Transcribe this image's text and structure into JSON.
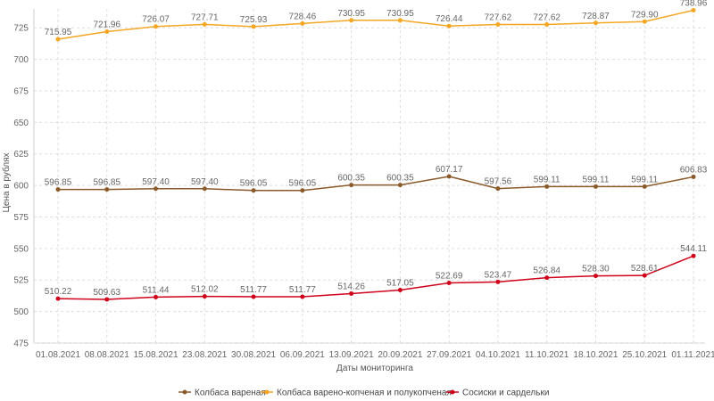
{
  "chart_data": {
    "type": "line",
    "xlabel": "Даты мониторинга",
    "ylabel": "Цена в рублях",
    "ylim": [
      475,
      740
    ],
    "yticks": [
      475,
      500,
      525,
      550,
      575,
      600,
      625,
      650,
      675,
      700,
      725
    ],
    "grid": true,
    "legend_position": "bottom",
    "categories": [
      "01.08.2021",
      "08.08.2021",
      "15.08.2021",
      "23.08.2021",
      "30.08.2021",
      "06.09.2021",
      "13.09.2021",
      "20.09.2021",
      "27.09.2021",
      "04.10.2021",
      "11.10.2021",
      "18.10.2021",
      "25.10.2021",
      "01.11.2021"
    ],
    "series": [
      {
        "name": "Колбаса вареная",
        "color": "#8B5A2B",
        "values": [
          596.85,
          596.85,
          597.4,
          597.4,
          596.05,
          596.05,
          600.35,
          600.35,
          607.17,
          597.56,
          599.11,
          599.11,
          599.11,
          606.83
        ],
        "labels": [
          "596.85",
          "596.85",
          "597.40",
          "597.40",
          "596.05",
          "596.05",
          "600.35",
          "600.35",
          "607.17",
          "597.56",
          "599.11",
          "599.11",
          "599.11",
          "606.83"
        ]
      },
      {
        "name": "Колбаса варено-копченая и полукопченая",
        "color": "#F5A623",
        "values": [
          715.95,
          721.96,
          726.07,
          727.71,
          725.93,
          728.46,
          730.95,
          730.95,
          726.44,
          727.62,
          727.62,
          728.87,
          729.9,
          738.96
        ],
        "labels": [
          "715.95",
          "721.96",
          "726.07",
          "727.71",
          "725.93",
          "728.46",
          "730.95",
          "730.95",
          "726.44",
          "727.62",
          "727.62",
          "728.87",
          "729.90",
          "738.96"
        ]
      },
      {
        "name": "Сосиски и сардельки",
        "color": "#D0021B",
        "values": [
          510.22,
          509.63,
          511.44,
          512.02,
          511.77,
          511.77,
          514.26,
          517.05,
          522.69,
          523.47,
          526.84,
          528.3,
          528.61,
          544.11
        ],
        "labels": [
          "510.22",
          "509.63",
          "511.44",
          "512.02",
          "511.77",
          "511.77",
          "514.26",
          "517.05",
          "522.69",
          "523.47",
          "526.84",
          "528.30",
          "528.61",
          "544.11"
        ]
      }
    ]
  }
}
